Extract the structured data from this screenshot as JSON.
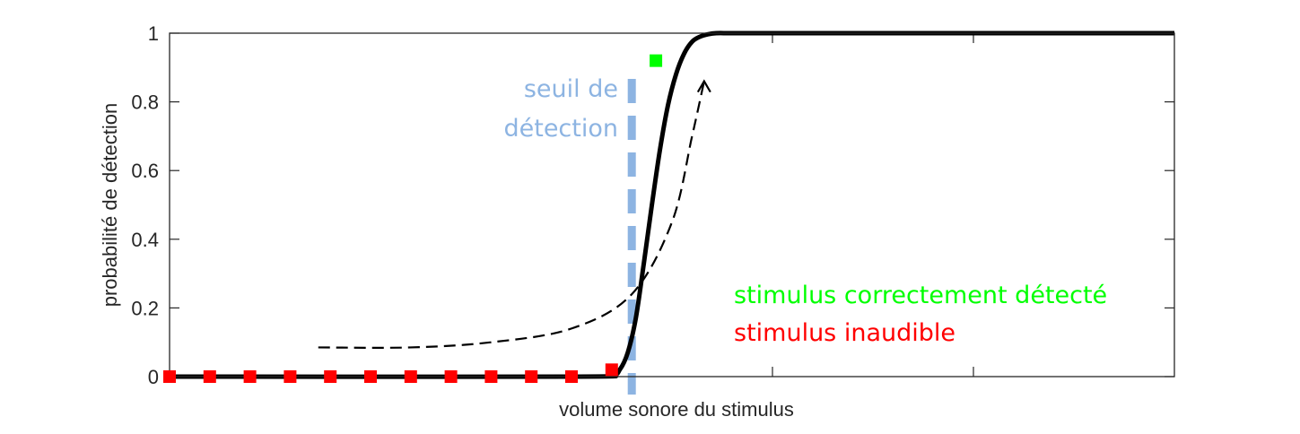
{
  "chart_data": {
    "type": "line",
    "title": "",
    "xlabel": "volume sonore du stimulus",
    "ylabel": "probabilité de détection",
    "xlim": [
      0,
      25
    ],
    "ylim": [
      0,
      1
    ],
    "yticks": [
      0,
      0.2,
      0.4,
      0.6,
      0.8,
      1
    ],
    "ytick_labels": [
      "0",
      "0.2",
      "0.4",
      "0.6",
      "0.8",
      "1"
    ],
    "xticks": [
      15,
      20
    ],
    "grid": false,
    "curve": {
      "name": "",
      "color": "#000000",
      "x": [
        0,
        10,
        11,
        11.2,
        11.4,
        11.6,
        11.8,
        12,
        12.2,
        12.4,
        12.6,
        12.8,
        13,
        13.2,
        13.4,
        13.6,
        14,
        15,
        25
      ],
      "y": [
        0,
        0,
        0.005,
        0.02,
        0.07,
        0.17,
        0.33,
        0.5,
        0.66,
        0.79,
        0.88,
        0.94,
        0.975,
        0.99,
        0.997,
        1,
        1,
        1,
        1
      ]
    },
    "points_inaudible": {
      "color": "#ff0000",
      "x": [
        0,
        1,
        2,
        3,
        4,
        5,
        6,
        7,
        8,
        9,
        10,
        11
      ],
      "y": [
        0,
        0,
        0,
        0,
        0,
        0,
        0,
        0,
        0,
        0,
        0,
        0.02
      ]
    },
    "points_detected": {
      "color": "#00ff00",
      "x": [
        12.1
      ],
      "y": [
        0.92
      ]
    },
    "threshold": {
      "color": "#8db4e2",
      "x": 11.5,
      "label_lines": [
        "seuil de",
        "détection"
      ]
    },
    "arrow_path": {
      "x": [
        3.7,
        6,
        8,
        10,
        11.5,
        12.5,
        13,
        13.3
      ],
      "y": [
        0.085,
        0.085,
        0.1,
        0.14,
        0.24,
        0.45,
        0.7,
        0.86
      ]
    },
    "legend": {
      "detected": {
        "text": "stimulus correctement détecté",
        "color": "#00ff00"
      },
      "inaudible": {
        "text": "stimulus inaudible",
        "color": "#ff0000"
      }
    }
  }
}
